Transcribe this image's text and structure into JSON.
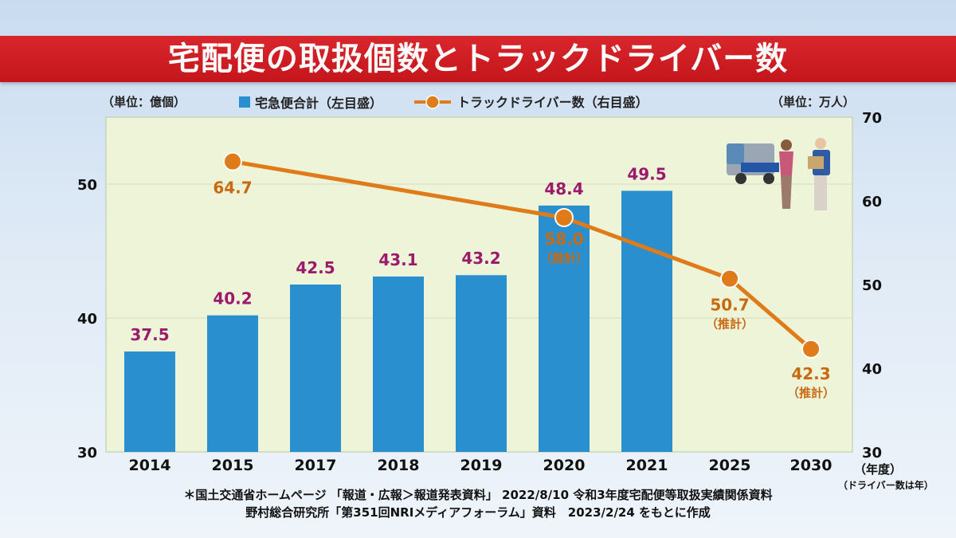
{
  "title": "宅配便の取扱個数とトラックドライバー数",
  "left_unit": "（単位：億個）",
  "right_unit": "（単位：万人）",
  "legend": {
    "bars": "宅急便合計（左目盛）",
    "line": "トラックドライバー数（右目盛）"
  },
  "year_unit": "（年度）",
  "year_note": "（ドライバー数は年）",
  "estimate_label": "（推計）",
  "source_line1": "＊国土交通省ホームページ 「報道・広報＞報道発表資料」 2022/8/10 令和3年度宅配便等取扱実績関係資料",
  "source_line2": "野村総合研究所「第351回NRIメディアフォーラム」資料　2023/2/24 をもとに作成",
  "colors": {
    "title_bg": "#c4161c",
    "bar": "#2a8fcf",
    "bar_label": "#9b1a6b",
    "line": "#e07b1a",
    "line_label": "#c96a12",
    "plot_bg": "#eef4d8"
  },
  "chart_data": {
    "type": "bar",
    "categories": [
      "2014",
      "2015",
      "2017",
      "2018",
      "2019",
      "2020",
      "2021",
      "2025",
      "2030"
    ],
    "series": [
      {
        "name": "宅急便合計（左目盛）",
        "type": "bar",
        "axis": "left",
        "values": [
          37.5,
          40.2,
          42.5,
          43.1,
          43.2,
          48.4,
          49.5,
          null,
          null
        ]
      },
      {
        "name": "トラックドライバー数（右目盛）",
        "type": "line",
        "axis": "right",
        "values": [
          null,
          64.7,
          null,
          null,
          null,
          58.0,
          null,
          50.7,
          42.3
        ],
        "estimated": [
          false,
          false,
          false,
          false,
          false,
          true,
          false,
          true,
          true
        ]
      }
    ],
    "left_axis": {
      "ylim": [
        30,
        55
      ],
      "ticks": [
        30,
        40,
        50
      ]
    },
    "right_axis": {
      "ylim": [
        30,
        70
      ],
      "ticks": [
        30,
        40,
        50,
        60,
        70
      ]
    },
    "grid": true
  }
}
